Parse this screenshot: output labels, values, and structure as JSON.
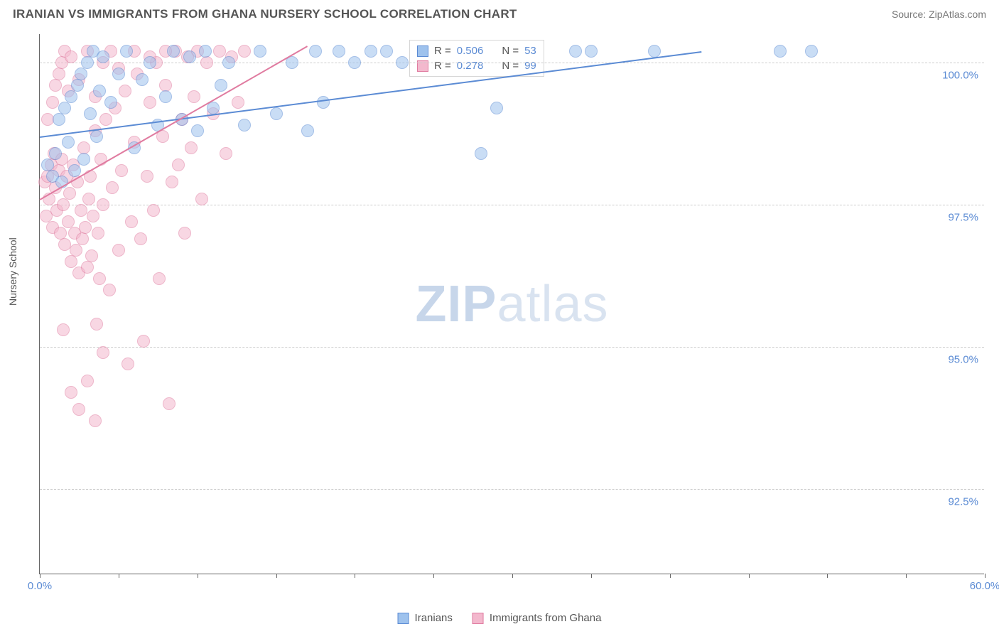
{
  "header": {
    "title": "IRANIAN VS IMMIGRANTS FROM GHANA NURSERY SCHOOL CORRELATION CHART",
    "source": "Source: ZipAtlas.com"
  },
  "chart": {
    "type": "scatter",
    "ylabel": "Nursery School",
    "watermark_a": "ZIP",
    "watermark_b": "atlas",
    "xlim": [
      0,
      60
    ],
    "ylim": [
      91.0,
      100.5
    ],
    "xticks": [
      0,
      5,
      10,
      15,
      20,
      25,
      30,
      35,
      40,
      45,
      50,
      55,
      60
    ],
    "xtick_labels": {
      "0": "0.0%",
      "60": "60.0%"
    },
    "yticks": [
      92.5,
      95.0,
      97.5,
      100.0
    ],
    "ytick_labels": [
      "92.5%",
      "95.0%",
      "97.5%",
      "100.0%"
    ],
    "grid_color": "#cccccc",
    "axis_color": "#666666",
    "background_color": "#ffffff",
    "point_radius": 9,
    "point_opacity": 0.55,
    "series": [
      {
        "name": "Iranians",
        "color_fill": "#9ec2ed",
        "color_stroke": "#5b8bd4",
        "r_label": "R =",
        "r_value": "0.506",
        "n_label": "N =",
        "n_value": "53",
        "trendline": {
          "x1": 0,
          "y1": 98.7,
          "x2": 42,
          "y2": 100.2,
          "color": "#5b8bd4"
        },
        "points": [
          [
            0.5,
            98.2
          ],
          [
            0.8,
            98.0
          ],
          [
            1.0,
            98.4
          ],
          [
            1.2,
            99.0
          ],
          [
            1.4,
            97.9
          ],
          [
            1.6,
            99.2
          ],
          [
            1.8,
            98.6
          ],
          [
            2.0,
            99.4
          ],
          [
            2.2,
            98.1
          ],
          [
            2.4,
            99.6
          ],
          [
            2.6,
            99.8
          ],
          [
            2.8,
            98.3
          ],
          [
            3.0,
            100.0
          ],
          [
            3.2,
            99.1
          ],
          [
            3.4,
            100.2
          ],
          [
            3.6,
            98.7
          ],
          [
            3.8,
            99.5
          ],
          [
            4.0,
            100.1
          ],
          [
            4.5,
            99.3
          ],
          [
            5.0,
            99.8
          ],
          [
            5.5,
            100.2
          ],
          [
            6.0,
            98.5
          ],
          [
            6.5,
            99.7
          ],
          [
            7.0,
            100.0
          ],
          [
            7.5,
            98.9
          ],
          [
            8.0,
            99.4
          ],
          [
            8.5,
            100.2
          ],
          [
            9.0,
            99.0
          ],
          [
            9.5,
            100.1
          ],
          [
            10.0,
            98.8
          ],
          [
            10.5,
            100.2
          ],
          [
            11.0,
            99.2
          ],
          [
            12.0,
            100.0
          ],
          [
            13.0,
            98.9
          ],
          [
            14.0,
            100.2
          ],
          [
            15.0,
            99.1
          ],
          [
            16.0,
            100.0
          ],
          [
            17.0,
            98.8
          ],
          [
            17.5,
            100.2
          ],
          [
            18.0,
            99.3
          ],
          [
            19.0,
            100.2
          ],
          [
            20.0,
            100.0
          ],
          [
            21.0,
            100.2
          ],
          [
            22.0,
            100.2
          ],
          [
            23.0,
            100.0
          ],
          [
            28.0,
            98.4
          ],
          [
            29.0,
            99.2
          ],
          [
            34.0,
            100.2
          ],
          [
            35.0,
            100.2
          ],
          [
            39.0,
            100.2
          ],
          [
            47.0,
            100.2
          ],
          [
            49.0,
            100.2
          ],
          [
            11.5,
            99.6
          ]
        ]
      },
      {
        "name": "Immigrants from Ghana",
        "color_fill": "#f3b8cd",
        "color_stroke": "#e07ba0",
        "r_label": "R =",
        "r_value": "0.278",
        "n_label": "N =",
        "n_value": "99",
        "trendline": {
          "x1": 0,
          "y1": 97.6,
          "x2": 17,
          "y2": 100.3,
          "color": "#e07ba0"
        },
        "points": [
          [
            0.3,
            97.9
          ],
          [
            0.4,
            97.3
          ],
          [
            0.5,
            98.0
          ],
          [
            0.6,
            97.6
          ],
          [
            0.7,
            98.2
          ],
          [
            0.8,
            97.1
          ],
          [
            0.9,
            98.4
          ],
          [
            1.0,
            97.8
          ],
          [
            1.1,
            97.4
          ],
          [
            1.2,
            98.1
          ],
          [
            1.3,
            97.0
          ],
          [
            1.4,
            98.3
          ],
          [
            1.5,
            97.5
          ],
          [
            1.6,
            96.8
          ],
          [
            1.7,
            98.0
          ],
          [
            1.8,
            97.2
          ],
          [
            1.9,
            97.7
          ],
          [
            2.0,
            96.5
          ],
          [
            2.1,
            98.2
          ],
          [
            2.2,
            97.0
          ],
          [
            2.3,
            96.7
          ],
          [
            2.4,
            97.9
          ],
          [
            2.5,
            96.3
          ],
          [
            2.6,
            97.4
          ],
          [
            2.7,
            96.9
          ],
          [
            2.8,
            98.5
          ],
          [
            2.9,
            97.1
          ],
          [
            3.0,
            96.4
          ],
          [
            3.1,
            97.6
          ],
          [
            3.2,
            98.0
          ],
          [
            3.3,
            96.6
          ],
          [
            3.4,
            97.3
          ],
          [
            3.5,
            98.8
          ],
          [
            3.6,
            95.4
          ],
          [
            3.7,
            97.0
          ],
          [
            3.8,
            96.2
          ],
          [
            3.9,
            98.3
          ],
          [
            4.0,
            97.5
          ],
          [
            4.2,
            99.0
          ],
          [
            4.4,
            96.0
          ],
          [
            4.6,
            97.8
          ],
          [
            4.8,
            99.2
          ],
          [
            5.0,
            96.7
          ],
          [
            5.2,
            98.1
          ],
          [
            5.4,
            99.5
          ],
          [
            5.6,
            94.7
          ],
          [
            5.8,
            97.2
          ],
          [
            6.0,
            98.6
          ],
          [
            6.2,
            99.8
          ],
          [
            6.4,
            96.9
          ],
          [
            6.6,
            95.1
          ],
          [
            6.8,
            98.0
          ],
          [
            7.0,
            99.3
          ],
          [
            7.2,
            97.4
          ],
          [
            7.4,
            100.0
          ],
          [
            7.6,
            96.2
          ],
          [
            7.8,
            98.7
          ],
          [
            8.0,
            99.6
          ],
          [
            8.2,
            94.0
          ],
          [
            8.4,
            97.9
          ],
          [
            8.6,
            100.2
          ],
          [
            8.8,
            98.2
          ],
          [
            9.0,
            99.0
          ],
          [
            9.2,
            97.0
          ],
          [
            9.4,
            100.1
          ],
          [
            9.6,
            98.5
          ],
          [
            9.8,
            99.4
          ],
          [
            10.0,
            100.2
          ],
          [
            10.3,
            97.6
          ],
          [
            10.6,
            100.0
          ],
          [
            11.0,
            99.1
          ],
          [
            11.4,
            100.2
          ],
          [
            11.8,
            98.4
          ],
          [
            12.2,
            100.1
          ],
          [
            12.6,
            99.3
          ],
          [
            13.0,
            100.2
          ],
          [
            2.0,
            94.2
          ],
          [
            2.5,
            93.9
          ],
          [
            3.0,
            94.4
          ],
          [
            3.5,
            93.7
          ],
          [
            1.5,
            95.3
          ],
          [
            4.0,
            94.9
          ],
          [
            0.5,
            99.0
          ],
          [
            0.8,
            99.3
          ],
          [
            1.0,
            99.6
          ],
          [
            1.2,
            99.8
          ],
          [
            1.4,
            100.0
          ],
          [
            1.6,
            100.2
          ],
          [
            1.8,
            99.5
          ],
          [
            2.0,
            100.1
          ],
          [
            2.5,
            99.7
          ],
          [
            3.0,
            100.2
          ],
          [
            3.5,
            99.4
          ],
          [
            4.0,
            100.0
          ],
          [
            4.5,
            100.2
          ],
          [
            5.0,
            99.9
          ],
          [
            6.0,
            100.2
          ],
          [
            7.0,
            100.1
          ],
          [
            8.0,
            100.2
          ]
        ]
      }
    ],
    "legend": {
      "items": [
        "Iranians",
        "Immigrants from Ghana"
      ]
    }
  }
}
